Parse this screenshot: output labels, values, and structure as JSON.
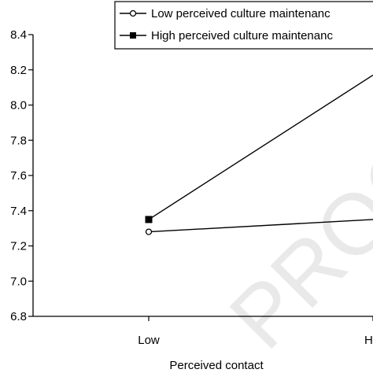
{
  "chart_data": {
    "type": "line",
    "categories": [
      "Low",
      "High"
    ],
    "xlabel": "Perceived contact",
    "ylabel": "",
    "ylim": [
      6.8,
      8.4
    ],
    "yticks": [
      "6.8",
      "7.0",
      "7.2",
      "7.4",
      "7.6",
      "7.8",
      "8.0",
      "8.2",
      "8.4"
    ],
    "grid": false,
    "legend_position": "top-right",
    "series": [
      {
        "name": "Low perceived culture maintenanc",
        "marker": "open-circle",
        "values": [
          7.28,
          7.35
        ]
      },
      {
        "name": "High perceived culture maintenanc",
        "marker": "filled-square",
        "values": [
          7.35,
          8.17
        ]
      }
    ],
    "watermark": "PROOF"
  },
  "colors": {
    "line": "#000000",
    "watermark": "#e9e9e9"
  }
}
